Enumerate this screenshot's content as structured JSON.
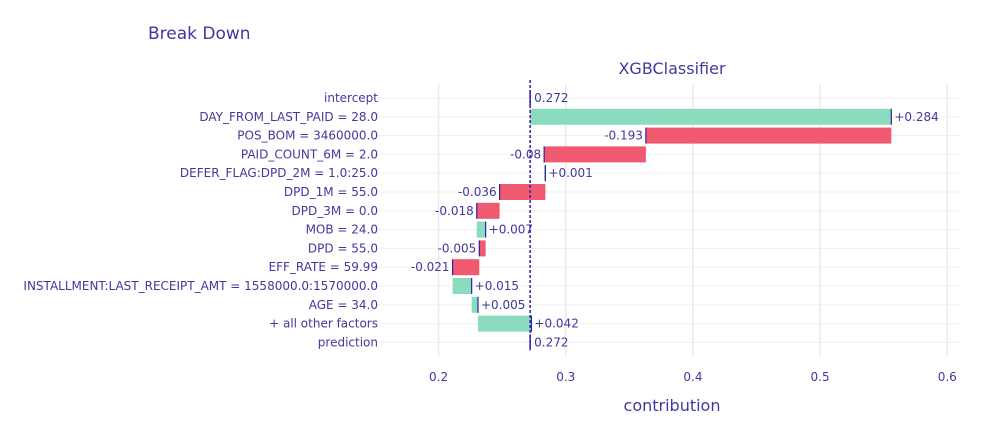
{
  "chart_data": {
    "type": "bar",
    "title": "Break Down",
    "model_name": "XGBClassifier",
    "xlabel": "contribution",
    "xlim": [
      0.15,
      0.61
    ],
    "x_ticks": [
      0.2,
      0.3,
      0.4,
      0.5,
      0.6
    ],
    "x_tick_labels": [
      "0.2",
      "0.3",
      "0.4",
      "0.5",
      "0.6"
    ],
    "baseline": 0.272,
    "grid": true,
    "colors": {
      "positive": "#8bdcbe",
      "negative": "#f05a71",
      "line": "#371ea3",
      "text": "#3f3a9e"
    },
    "rows": [
      {
        "label": "intercept",
        "kind": "intercept",
        "start": 0.272,
        "end": 0.272,
        "value_label": "0.272"
      },
      {
        "label": "DAY_FROM_LAST_PAID = 28.0",
        "kind": "positive",
        "start": 0.272,
        "end": 0.556,
        "value_label": "+0.284"
      },
      {
        "label": "POS_BOM = 3460000.0",
        "kind": "negative",
        "start": 0.556,
        "end": 0.363,
        "value_label": "-0.193"
      },
      {
        "label": "PAID_COUNT_6M = 2.0",
        "kind": "negative",
        "start": 0.363,
        "end": 0.283,
        "value_label": "-0.08"
      },
      {
        "label": "DEFER_FLAG:DPD_2M = 1.0:25.0",
        "kind": "positive",
        "start": 0.283,
        "end": 0.284,
        "value_label": "+0.001"
      },
      {
        "label": "DPD_1M = 55.0",
        "kind": "negative",
        "start": 0.284,
        "end": 0.248,
        "value_label": "-0.036"
      },
      {
        "label": "DPD_3M = 0.0",
        "kind": "negative",
        "start": 0.248,
        "end": 0.23,
        "value_label": "-0.018"
      },
      {
        "label": "MOB = 24.0",
        "kind": "positive",
        "start": 0.23,
        "end": 0.237,
        "value_label": "+0.007"
      },
      {
        "label": "DPD = 55.0",
        "kind": "negative",
        "start": 0.237,
        "end": 0.232,
        "value_label": "-0.005"
      },
      {
        "label": "EFF_RATE = 59.99",
        "kind": "negative",
        "start": 0.232,
        "end": 0.211,
        "value_label": "-0.021"
      },
      {
        "label": "INSTALLMENT:LAST_RECEIPT_AMT = 1558000.0:1570000.0",
        "kind": "positive",
        "start": 0.211,
        "end": 0.226,
        "value_label": "+0.015"
      },
      {
        "label": "AGE = 34.0",
        "kind": "positive",
        "start": 0.226,
        "end": 0.231,
        "value_label": "+0.005"
      },
      {
        "label": "+ all other factors",
        "kind": "positive",
        "start": 0.231,
        "end": 0.273,
        "value_label": "+0.042"
      },
      {
        "label": "prediction",
        "kind": "prediction",
        "start": 0.272,
        "end": 0.272,
        "value_label": "0.272"
      }
    ]
  }
}
